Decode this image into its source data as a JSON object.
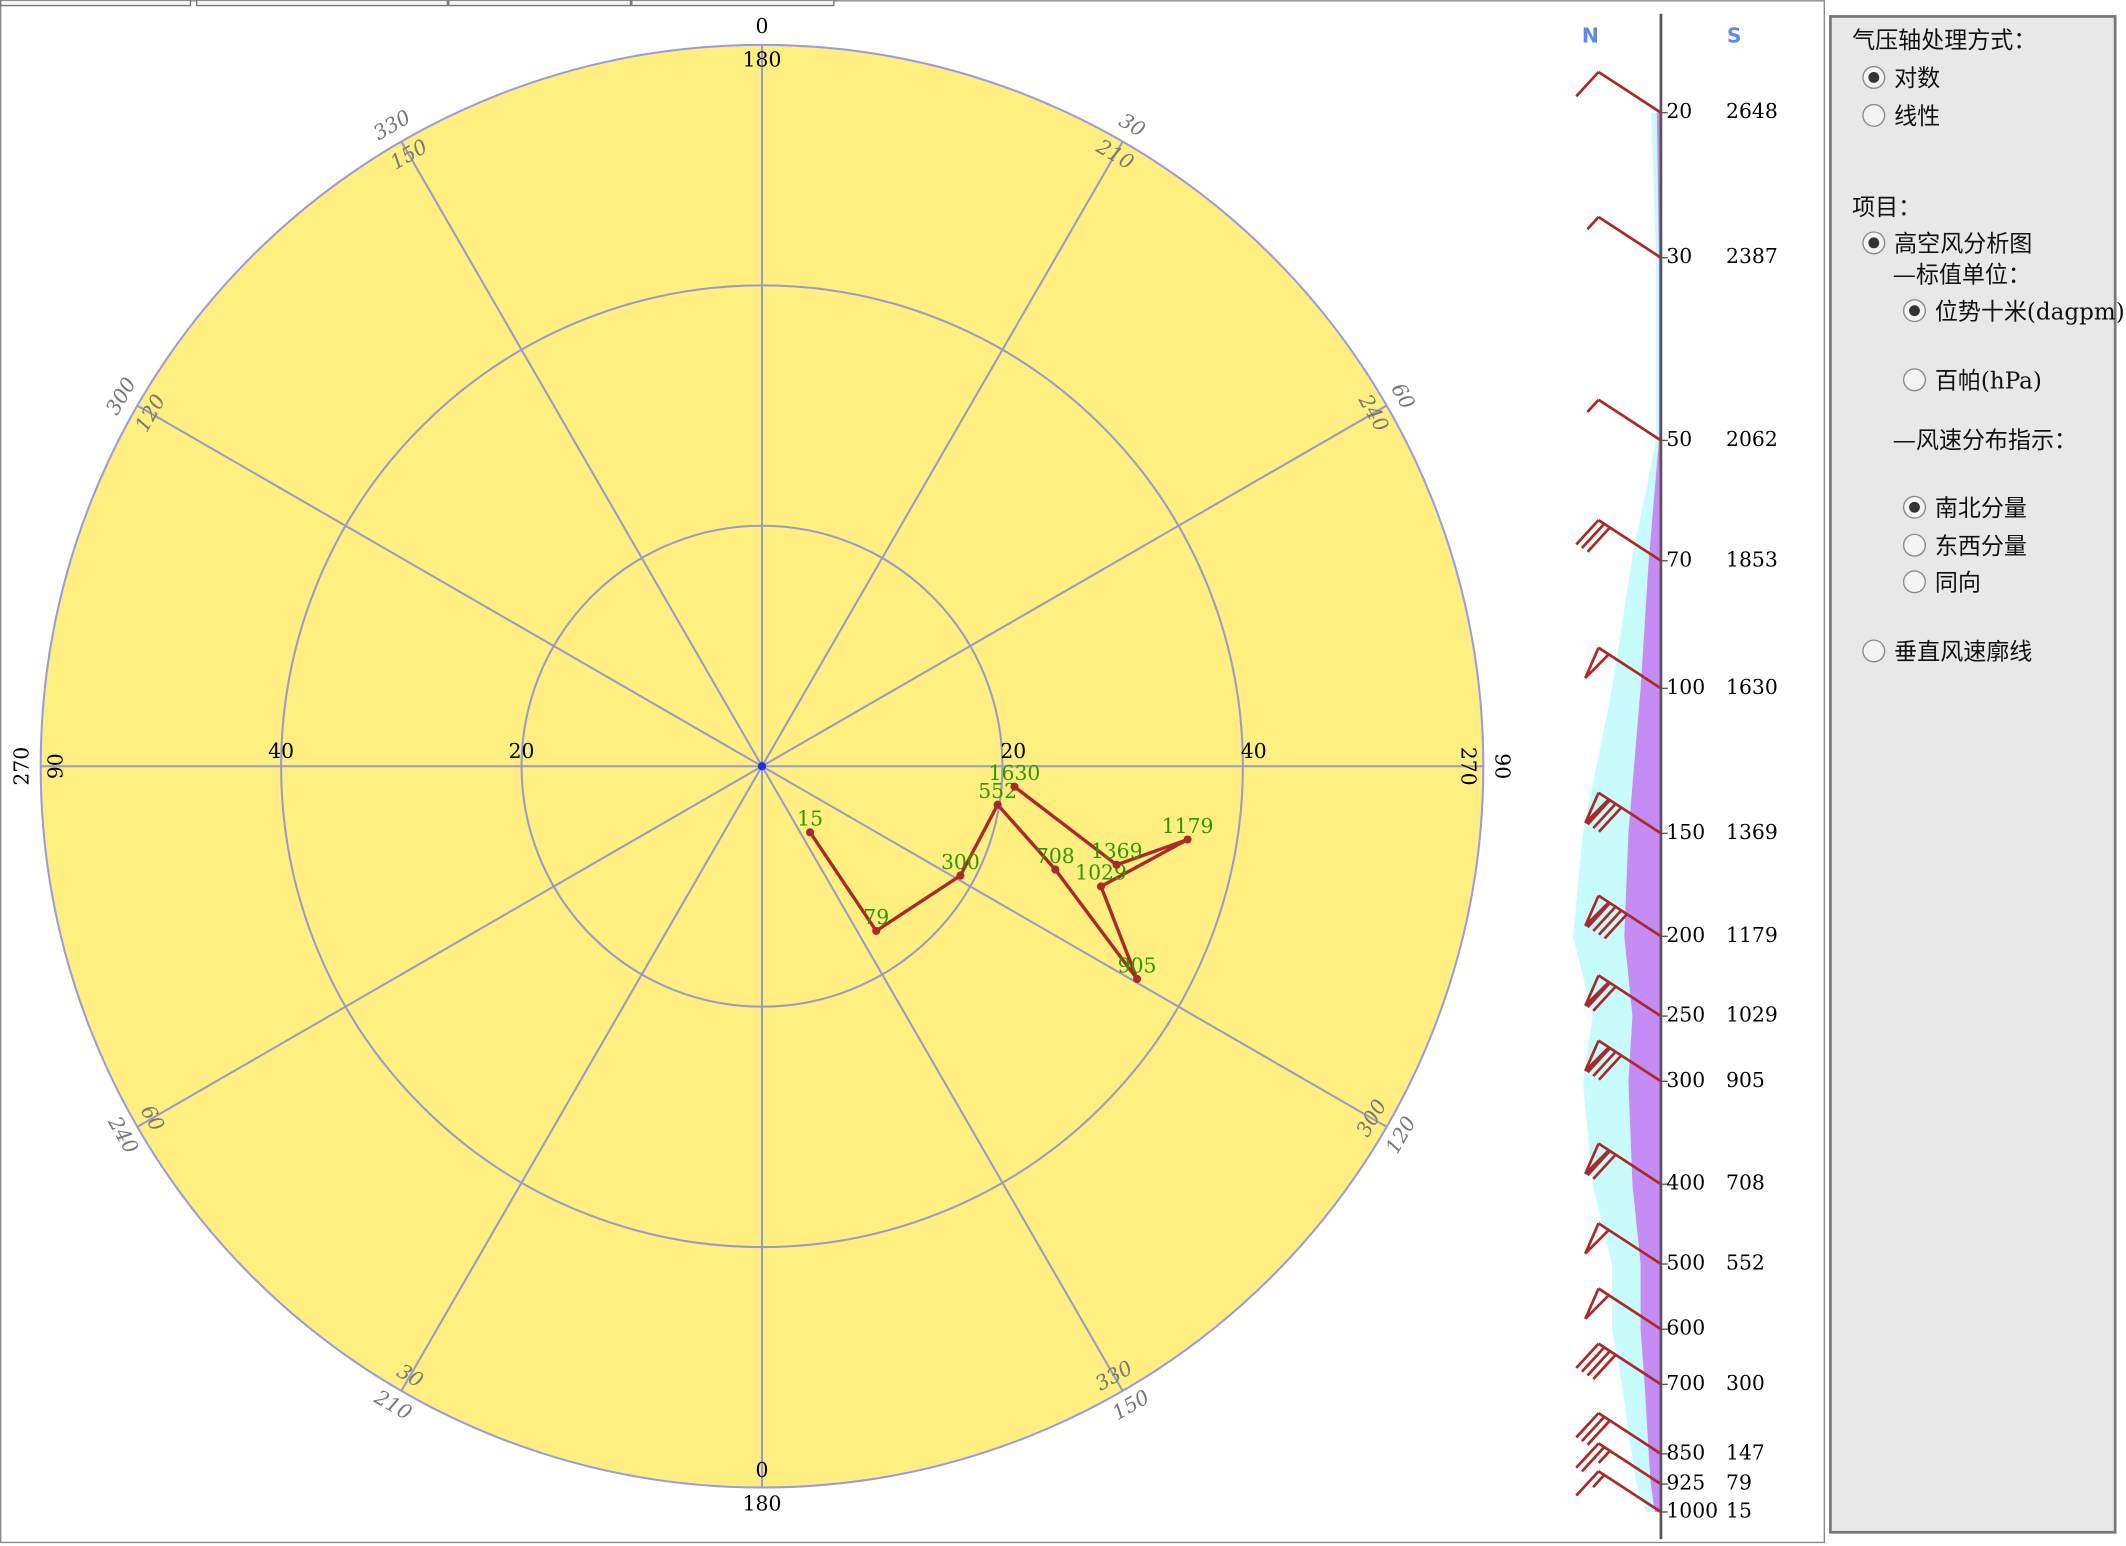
{
  "hodograph": {
    "rlim": [
      0,
      60
    ],
    "rticks": [
      20,
      40
    ],
    "directions": [
      {
        "outer": 0,
        "inner": 180
      },
      {
        "outer": 30,
        "inner": 210
      },
      {
        "outer": 60,
        "inner": 240
      },
      {
        "outer": 90,
        "inner": 270
      },
      {
        "outer": 120,
        "inner": 300
      },
      {
        "outer": 150,
        "inner": 330
      },
      {
        "outer": 180,
        "inner": 0
      },
      {
        "outer": 210,
        "inner": 30
      },
      {
        "outer": 240,
        "inner": 60
      },
      {
        "outer": 270,
        "inner": 90
      },
      {
        "outer": 300,
        "inner": 120
      },
      {
        "outer": 330,
        "inner": 150
      }
    ],
    "points": [
      {
        "height": 15,
        "u": 4.0,
        "v": -5.5
      },
      {
        "height": 79,
        "u": 9.5,
        "v": -13.7
      },
      {
        "height": 300,
        "u": 16.5,
        "v": -9.1
      },
      {
        "height": 552,
        "u": 19.6,
        "v": -3.2
      },
      {
        "height": 708,
        "u": 24.4,
        "v": -8.6
      },
      {
        "height": 905,
        "u": 31.2,
        "v": -17.7
      },
      {
        "height": 1029,
        "u": 28.2,
        "v": -10.0
      },
      {
        "height": 1179,
        "u": 35.4,
        "v": -6.1
      },
      {
        "height": 1369,
        "u": 29.5,
        "v": -8.2
      },
      {
        "height": 1630,
        "u": 21.0,
        "v": -1.7
      }
    ]
  },
  "profile": {
    "left_label": "N",
    "right_label": "S",
    "plim": [
      20,
      1000
    ],
    "levels": [
      {
        "pressure": 20,
        "height": 2648,
        "speed": 4
      },
      {
        "pressure": 30,
        "height": 2387,
        "speed": 2
      },
      {
        "pressure": 50,
        "height": 2062,
        "speed": 2
      },
      {
        "pressure": 70,
        "height": 1853,
        "speed": 12
      },
      {
        "pressure": 100,
        "height": 1630,
        "speed": 20
      },
      {
        "pressure": 150,
        "height": 1369,
        "speed": 32
      },
      {
        "pressure": 200,
        "height": 1179,
        "speed": 36
      },
      {
        "pressure": 250,
        "height": 1029,
        "speed": 28
      },
      {
        "pressure": 300,
        "height": 905,
        "speed": 32
      },
      {
        "pressure": 400,
        "height": 708,
        "speed": 28
      },
      {
        "pressure": 500,
        "height": 552,
        "speed": 20
      },
      {
        "pressure": 600,
        "height": null,
        "speed": 20
      },
      {
        "pressure": 700,
        "height": 300,
        "speed": 16
      },
      {
        "pressure": 850,
        "height": 147,
        "speed": 12
      },
      {
        "pressure": 925,
        "height": 79,
        "speed": 10
      },
      {
        "pressure": 1000,
        "height": 15,
        "speed": 6
      }
    ]
  },
  "panel": {
    "pressure_axis": {
      "title": "气压轴处理方式：",
      "options": [
        {
          "label": "对数",
          "checked": true
        },
        {
          "label": "线性",
          "checked": false
        }
      ]
    },
    "items": {
      "title": "项目：",
      "options": [
        {
          "label": "高空风分析图",
          "checked": true
        }
      ],
      "unit_title": "—标值单位：",
      "unit_options": [
        {
          "label": "位势十米(dagpm)",
          "checked": true
        },
        {
          "label": "百帕(hPa)",
          "checked": false
        }
      ],
      "speed_title": "—风速分布指示：",
      "speed_options": [
        {
          "label": "南北分量",
          "checked": true
        },
        {
          "label": "东西分量",
          "checked": false
        },
        {
          "label": "同向",
          "checked": false
        }
      ],
      "vertical": {
        "label": "垂直风速廓线",
        "checked": false
      }
    }
  }
}
